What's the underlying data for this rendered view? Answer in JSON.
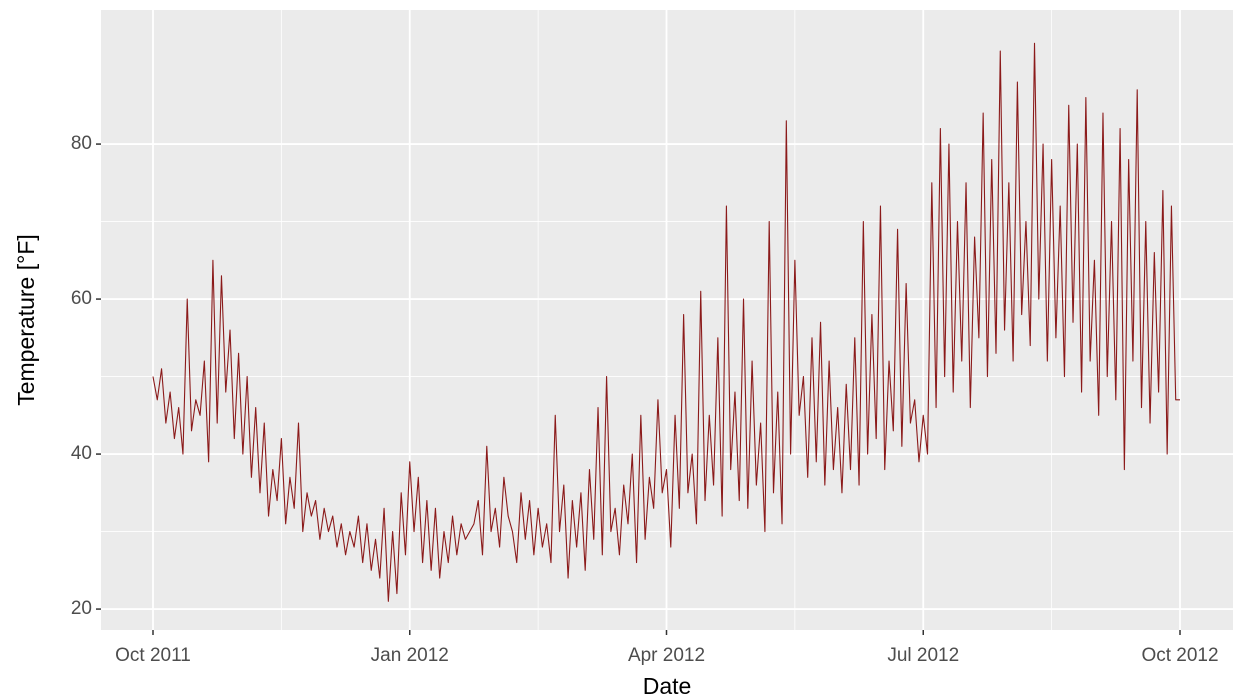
{
  "chart_data": {
    "type": "line",
    "x_label": "Date",
    "y_label": "Temperature [°F]",
    "xticks": [
      "Oct 2011",
      "Jan 2012",
      "Apr 2012",
      "Jul 2012",
      "Oct 2012"
    ],
    "ylim": [
      17.3,
      97.3
    ],
    "yticks": [
      20,
      40,
      60,
      80
    ],
    "grid": true,
    "color": "#8b1a1a",
    "values": [
      50,
      47,
      51,
      44,
      48,
      42,
      46,
      40,
      60,
      43,
      47,
      45,
      52,
      39,
      65,
      44,
      63,
      48,
      56,
      42,
      53,
      40,
      50,
      37,
      46,
      35,
      44,
      32,
      38,
      34,
      42,
      31,
      37,
      33,
      44,
      30,
      35,
      32,
      34,
      29,
      33,
      30,
      32,
      28,
      31,
      27,
      30,
      28,
      32,
      26,
      31,
      25,
      29,
      24,
      33,
      21,
      30,
      22,
      35,
      27,
      39,
      30,
      37,
      26,
      34,
      25,
      33,
      24,
      30,
      26,
      32,
      27,
      31,
      29,
      30,
      31,
      34,
      27,
      41,
      30,
      33,
      28,
      37,
      32,
      30,
      26,
      35,
      29,
      34,
      27,
      33,
      28,
      31,
      26,
      45,
      30,
      36,
      24,
      34,
      28,
      35,
      25,
      38,
      29,
      46,
      27,
      50,
      30,
      33,
      27,
      36,
      31,
      40,
      26,
      45,
      29,
      37,
      33,
      47,
      35,
      38,
      28,
      45,
      33,
      58,
      35,
      40,
      31,
      61,
      34,
      45,
      36,
      55,
      32,
      72,
      38,
      48,
      34,
      60,
      33,
      52,
      36,
      44,
      30,
      70,
      35,
      48,
      31,
      83,
      40,
      65,
      45,
      50,
      37,
      55,
      39,
      57,
      36,
      52,
      38,
      46,
      35,
      49,
      38,
      55,
      36,
      70,
      40,
      58,
      42,
      72,
      38,
      52,
      43,
      69,
      41,
      62,
      44,
      47,
      39,
      45,
      40,
      75,
      46,
      82,
      50,
      80,
      48,
      70,
      52,
      75,
      46,
      68,
      55,
      84,
      50,
      78,
      53,
      92,
      56,
      75,
      52,
      88,
      58,
      70,
      54,
      93,
      60,
      80,
      52,
      78,
      55,
      72,
      50,
      85,
      57,
      80,
      48,
      86,
      52,
      65,
      45,
      84,
      50,
      70,
      47,
      82,
      38,
      78,
      52,
      87,
      46,
      70,
      44,
      66,
      48,
      74,
      40,
      72,
      47,
      47
    ]
  }
}
